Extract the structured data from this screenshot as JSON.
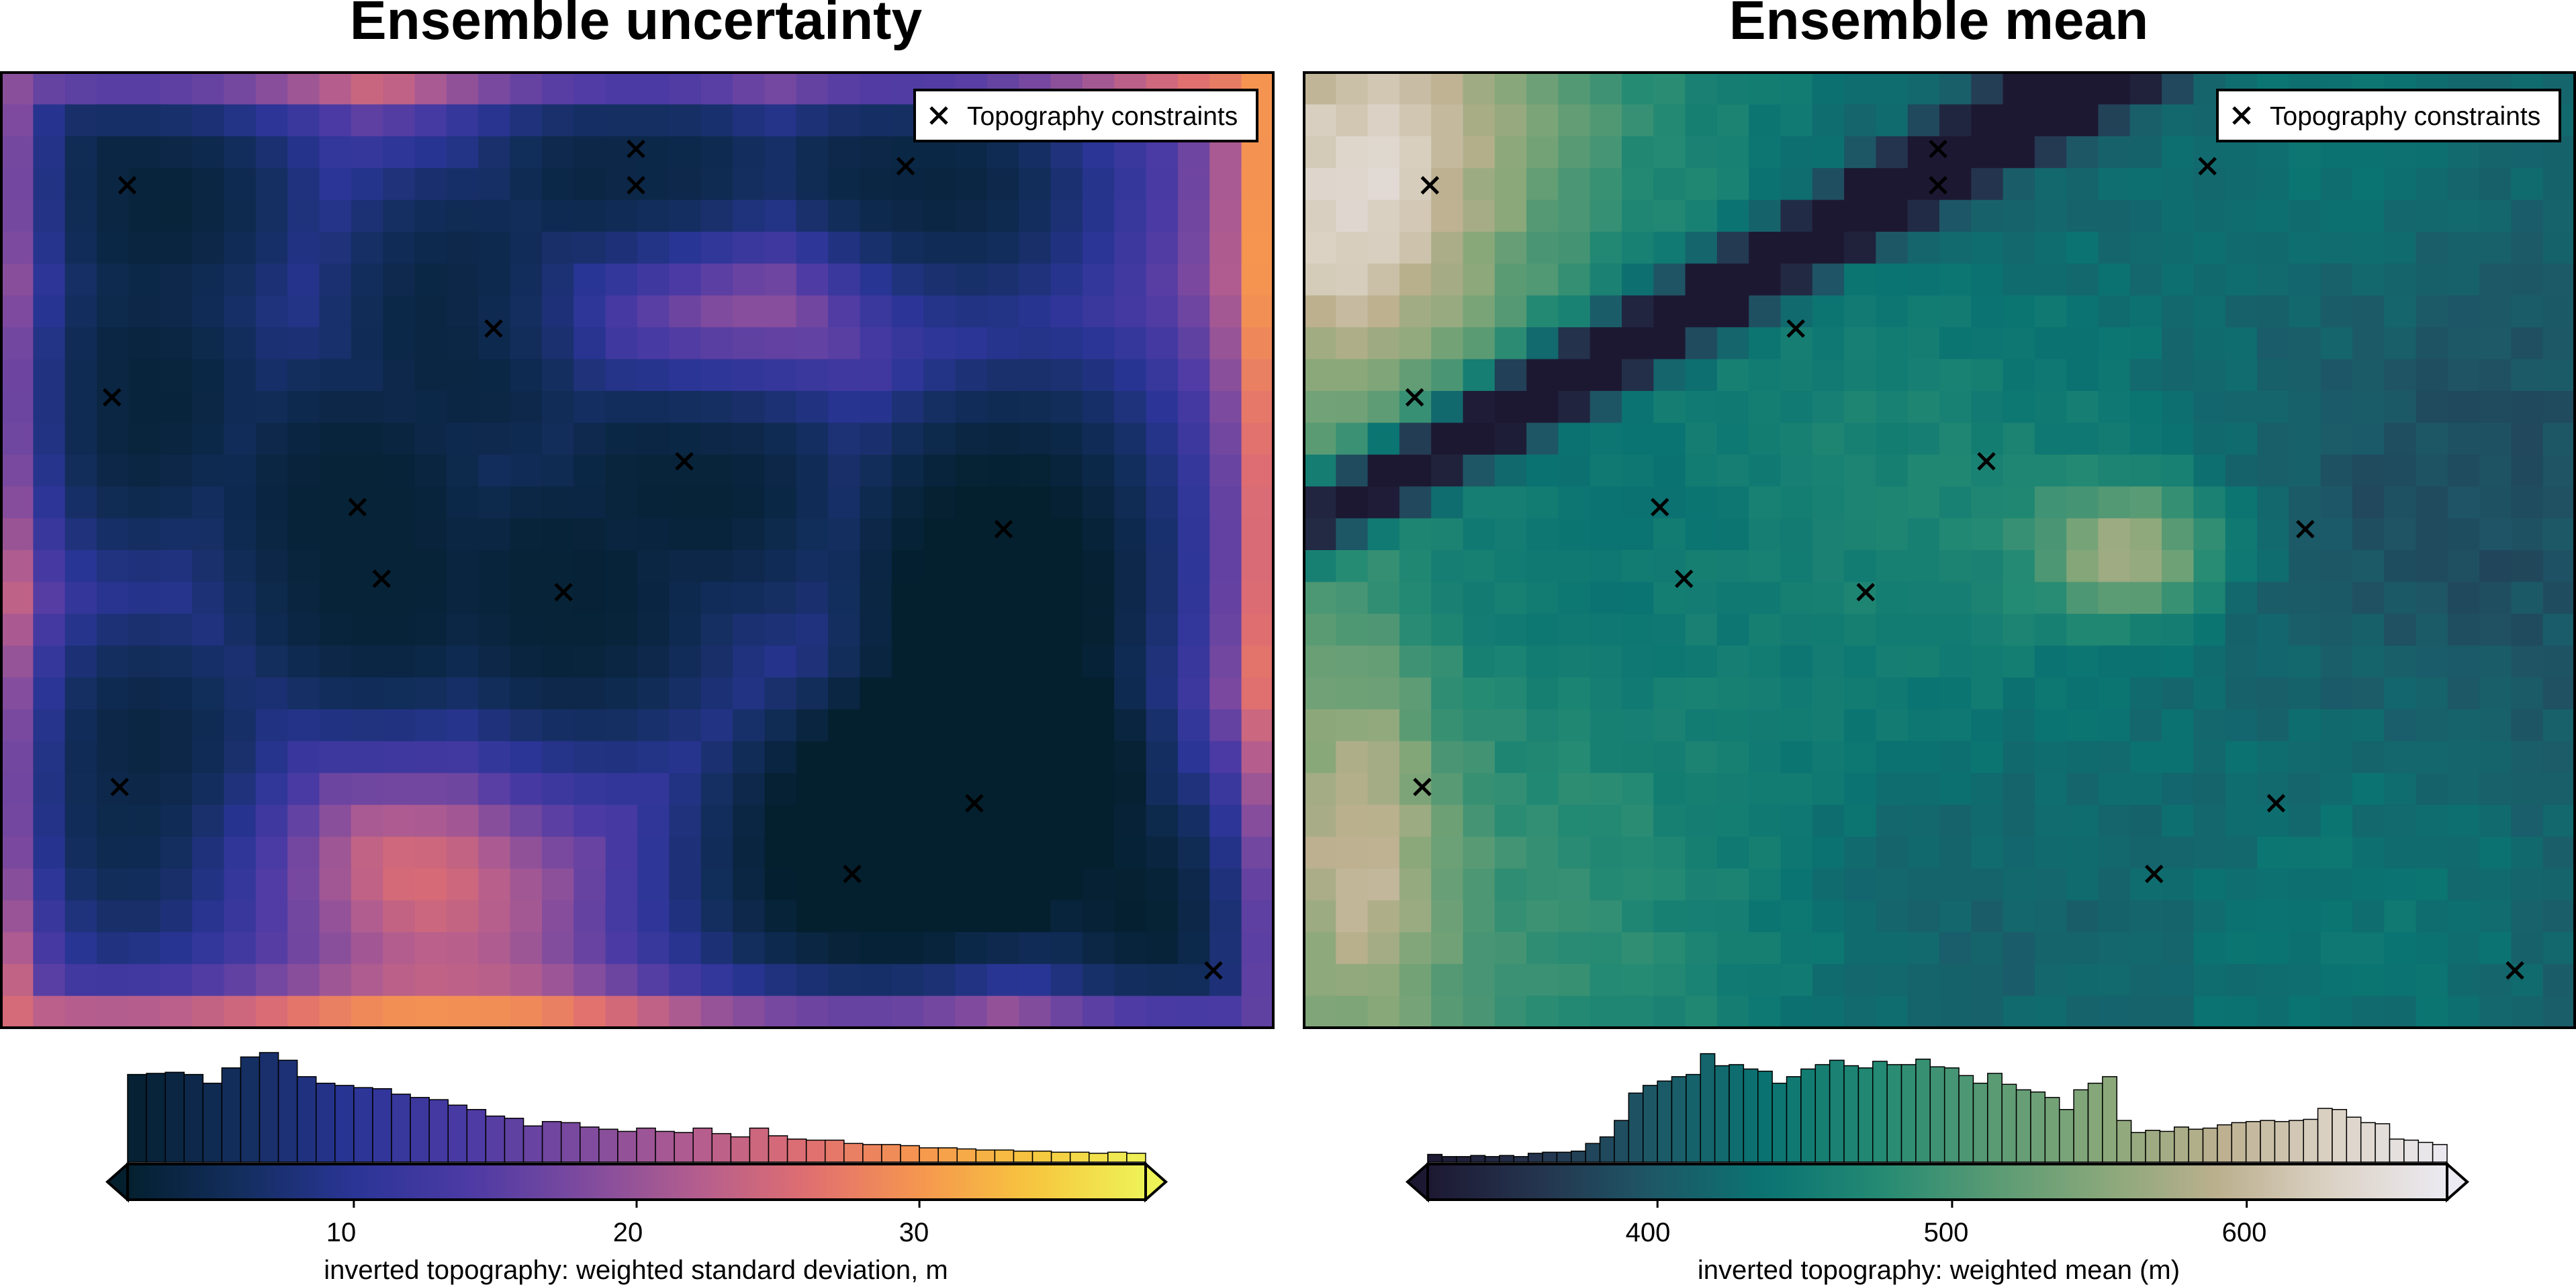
{
  "chart_data": [
    {
      "type": "heatmap",
      "title": "Ensemble uncertainty",
      "grid": false,
      "colormap": "thermal",
      "colors": [
        "#04202f",
        "#132e5e",
        "#2a3596",
        "#4b3aa4",
        "#7c4a9f",
        "#b25d8f",
        "#df6e71",
        "#f6964f",
        "#f7c63e",
        "#eef357"
      ],
      "legend": {
        "label": "Topography constraints",
        "placement": "top-right",
        "marker": "x"
      },
      "colorbar": {
        "label": "inverted topography: weighted standard deviation, m",
        "ticks": [
          "10",
          "20",
          "30"
        ],
        "range": [
          2,
          38
        ],
        "extend": "both",
        "histogram": [
          0.8,
          0.81,
          0.82,
          0.8,
          0.72,
          0.86,
          0.96,
          1.0,
          0.93,
          0.78,
          0.72,
          0.7,
          0.68,
          0.67,
          0.62,
          0.59,
          0.57,
          0.52,
          0.48,
          0.42,
          0.4,
          0.33,
          0.37,
          0.36,
          0.32,
          0.3,
          0.28,
          0.31,
          0.28,
          0.27,
          0.31,
          0.26,
          0.23,
          0.31,
          0.24,
          0.21,
          0.2,
          0.2,
          0.17,
          0.16,
          0.16,
          0.15,
          0.13,
          0.13,
          0.12,
          0.11,
          0.11,
          0.1,
          0.1,
          0.09,
          0.09,
          0.08,
          0.09,
          0.08
        ]
      }
    },
    {
      "type": "heatmap",
      "title": "Ensemble mean",
      "grid": false,
      "colormap": "rain",
      "colors": [
        "#1d1832",
        "#25354f",
        "#1d5867",
        "#0a7472",
        "#248a73",
        "#5a9b74",
        "#8aa87a",
        "#bcb08f",
        "#dcd3c6",
        "#eceaf2"
      ],
      "legend": {
        "label": "Topography constraints",
        "placement": "top-right",
        "marker": "x"
      },
      "colorbar": {
        "label": "inverted topography: weighted mean (m)",
        "ticks": [
          "400",
          "500",
          "600"
        ],
        "range": [
          322,
          668
        ],
        "extend": "both",
        "histogram": [
          0.07,
          0.05,
          0.05,
          0.06,
          0.05,
          0.06,
          0.05,
          0.08,
          0.09,
          0.09,
          0.1,
          0.17,
          0.23,
          0.38,
          0.63,
          0.7,
          0.74,
          0.78,
          0.8,
          0.99,
          0.88,
          0.89,
          0.85,
          0.83,
          0.72,
          0.78,
          0.85,
          0.89,
          0.93,
          0.88,
          0.86,
          0.92,
          0.89,
          0.89,
          0.94,
          0.87,
          0.86,
          0.79,
          0.72,
          0.81,
          0.71,
          0.66,
          0.64,
          0.59,
          0.48,
          0.66,
          0.72,
          0.78,
          0.38,
          0.27,
          0.29,
          0.28,
          0.32,
          0.3,
          0.31,
          0.34,
          0.36,
          0.37,
          0.38,
          0.37,
          0.38,
          0.39,
          0.49,
          0.48,
          0.41,
          0.36,
          0.35,
          0.21,
          0.2,
          0.18,
          0.16
        ]
      }
    }
  ],
  "constraints": [
    [
      0.099,
      0.118
    ],
    [
      0.499,
      0.08
    ],
    [
      0.499,
      0.118
    ],
    [
      0.711,
      0.098
    ],
    [
      0.387,
      0.268
    ],
    [
      0.087,
      0.34
    ],
    [
      0.537,
      0.407
    ],
    [
      0.28,
      0.455
    ],
    [
      0.788,
      0.478
    ],
    [
      0.299,
      0.53
    ],
    [
      0.442,
      0.544
    ],
    [
      0.093,
      0.748
    ],
    [
      0.765,
      0.765
    ],
    [
      0.669,
      0.839
    ],
    [
      0.953,
      0.94
    ]
  ]
}
